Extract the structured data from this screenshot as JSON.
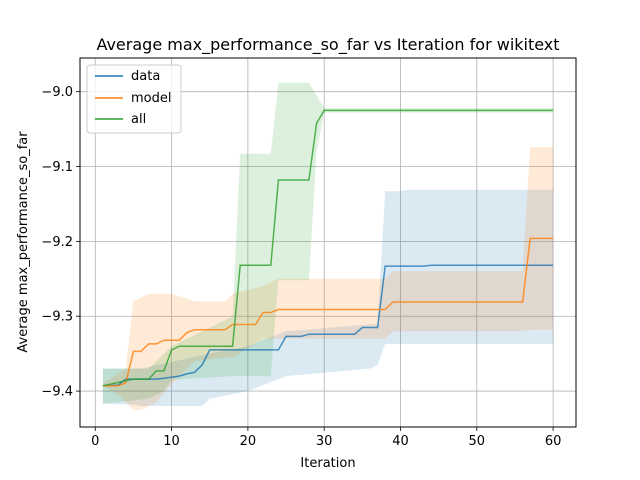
{
  "chart_data": {
    "type": "line",
    "title": "Average max_performance_so_far vs Iteration for wikitext",
    "xlabel": "Iteration",
    "ylabel": "Average max_performance_so_far",
    "xlim": [
      -2,
      63
    ],
    "ylim": [
      -9.448,
      -8.955
    ],
    "xticks": [
      0,
      10,
      20,
      30,
      40,
      50,
      60
    ],
    "yticks": [
      -9.4,
      -9.3,
      -9.2,
      -9.1,
      -9.0
    ],
    "grid": true,
    "legend_position": "top-left",
    "series": [
      {
        "name": "data",
        "color": "#1f77b4",
        "points": [
          [
            1,
            -9.393
          ],
          [
            3,
            -9.392
          ],
          [
            4,
            -9.384
          ],
          [
            6,
            -9.384
          ],
          [
            8,
            -9.384
          ],
          [
            9,
            -9.383
          ],
          [
            11,
            -9.38
          ],
          [
            12,
            -9.377
          ],
          [
            13,
            -9.375
          ],
          [
            14,
            -9.365
          ],
          [
            15,
            -9.345
          ],
          [
            20,
            -9.345
          ],
          [
            24,
            -9.345
          ],
          [
            25,
            -9.327
          ],
          [
            27,
            -9.327
          ],
          [
            28,
            -9.324
          ],
          [
            34,
            -9.324
          ],
          [
            35,
            -9.315
          ],
          [
            37,
            -9.315
          ],
          [
            38,
            -9.233
          ],
          [
            43,
            -9.233
          ],
          [
            44,
            -9.232
          ],
          [
            60,
            -9.232
          ]
        ],
        "band_upper": [
          [
            1,
            -9.37
          ],
          [
            5,
            -9.37
          ],
          [
            6,
            -9.37
          ],
          [
            15,
            -9.35
          ],
          [
            20,
            -9.34
          ],
          [
            25,
            -9.32
          ],
          [
            37,
            -9.31
          ],
          [
            38,
            -9.133
          ],
          [
            40,
            -9.133
          ],
          [
            41,
            -9.131
          ],
          [
            60,
            -9.131
          ]
        ],
        "band_lower": [
          [
            1,
            -9.417
          ],
          [
            5,
            -9.418
          ],
          [
            6,
            -9.42
          ],
          [
            14,
            -9.42
          ],
          [
            15,
            -9.41
          ],
          [
            20,
            -9.4
          ],
          [
            25,
            -9.38
          ],
          [
            36,
            -9.37
          ],
          [
            37,
            -9.365
          ],
          [
            38,
            -9.337
          ],
          [
            60,
            -9.337
          ]
        ]
      },
      {
        "name": "model",
        "color": "#ff7f0e",
        "points": [
          [
            1,
            -9.393
          ],
          [
            3,
            -9.393
          ],
          [
            4,
            -9.389
          ],
          [
            5,
            -9.347
          ],
          [
            6,
            -9.347
          ],
          [
            7,
            -9.337
          ],
          [
            8,
            -9.337
          ],
          [
            9,
            -9.332
          ],
          [
            11,
            -9.332
          ],
          [
            12,
            -9.322
          ],
          [
            13,
            -9.318
          ],
          [
            17,
            -9.318
          ],
          [
            18,
            -9.311
          ],
          [
            21,
            -9.311
          ],
          [
            22,
            -9.295
          ],
          [
            23,
            -9.295
          ],
          [
            24,
            -9.291
          ],
          [
            38,
            -9.291
          ],
          [
            39,
            -9.281
          ],
          [
            56,
            -9.281
          ],
          [
            57,
            -9.196
          ],
          [
            60,
            -9.196
          ]
        ],
        "band_upper": [
          [
            1,
            -9.39
          ],
          [
            4,
            -9.37
          ],
          [
            5,
            -9.28
          ],
          [
            7,
            -9.27
          ],
          [
            10,
            -9.27
          ],
          [
            13,
            -9.28
          ],
          [
            17,
            -9.28
          ],
          [
            18,
            -9.27
          ],
          [
            22,
            -9.26
          ],
          [
            24,
            -9.25
          ],
          [
            38,
            -9.25
          ],
          [
            39,
            -9.24
          ],
          [
            56,
            -9.24
          ],
          [
            57,
            -9.074
          ],
          [
            60,
            -9.074
          ]
        ],
        "band_lower": [
          [
            1,
            -9.393
          ],
          [
            3,
            -9.405
          ],
          [
            4,
            -9.415
          ],
          [
            5,
            -9.425
          ],
          [
            6,
            -9.425
          ],
          [
            8,
            -9.415
          ],
          [
            10,
            -9.39
          ],
          [
            13,
            -9.36
          ],
          [
            17,
            -9.355
          ],
          [
            18,
            -9.355
          ],
          [
            22,
            -9.33
          ],
          [
            24,
            -9.33
          ],
          [
            38,
            -9.33
          ],
          [
            39,
            -9.32
          ],
          [
            56,
            -9.32
          ],
          [
            57,
            -9.318
          ],
          [
            60,
            -9.318
          ]
        ]
      },
      {
        "name": "all",
        "color": "#2ca02c",
        "points": [
          [
            1,
            -9.393
          ],
          [
            5,
            -9.384
          ],
          [
            7,
            -9.384
          ],
          [
            8,
            -9.373
          ],
          [
            9,
            -9.373
          ],
          [
            10,
            -9.345
          ],
          [
            11,
            -9.34
          ],
          [
            18,
            -9.34
          ],
          [
            19,
            -9.232
          ],
          [
            23,
            -9.232
          ],
          [
            24,
            -9.118
          ],
          [
            28,
            -9.118
          ],
          [
            29,
            -9.042
          ],
          [
            30,
            -9.025
          ],
          [
            60,
            -9.025
          ]
        ],
        "band_upper": [
          [
            1,
            -9.37
          ],
          [
            7,
            -9.37
          ],
          [
            10,
            -9.34
          ],
          [
            18,
            -9.3
          ],
          [
            19,
            -9.083
          ],
          [
            23,
            -9.083
          ],
          [
            24,
            -8.988
          ],
          [
            28,
            -8.988
          ],
          [
            29,
            -9.005
          ],
          [
            30,
            -9.022
          ],
          [
            60,
            -9.022
          ]
        ],
        "band_lower": [
          [
            1,
            -9.417
          ],
          [
            7,
            -9.41
          ],
          [
            9,
            -9.4
          ],
          [
            10,
            -9.385
          ],
          [
            18,
            -9.38
          ],
          [
            19,
            -9.38
          ],
          [
            23,
            -9.38
          ],
          [
            24,
            -9.252
          ],
          [
            28,
            -9.252
          ],
          [
            29,
            -9.08
          ],
          [
            30,
            -9.028
          ],
          [
            60,
            -9.028
          ]
        ]
      }
    ]
  }
}
